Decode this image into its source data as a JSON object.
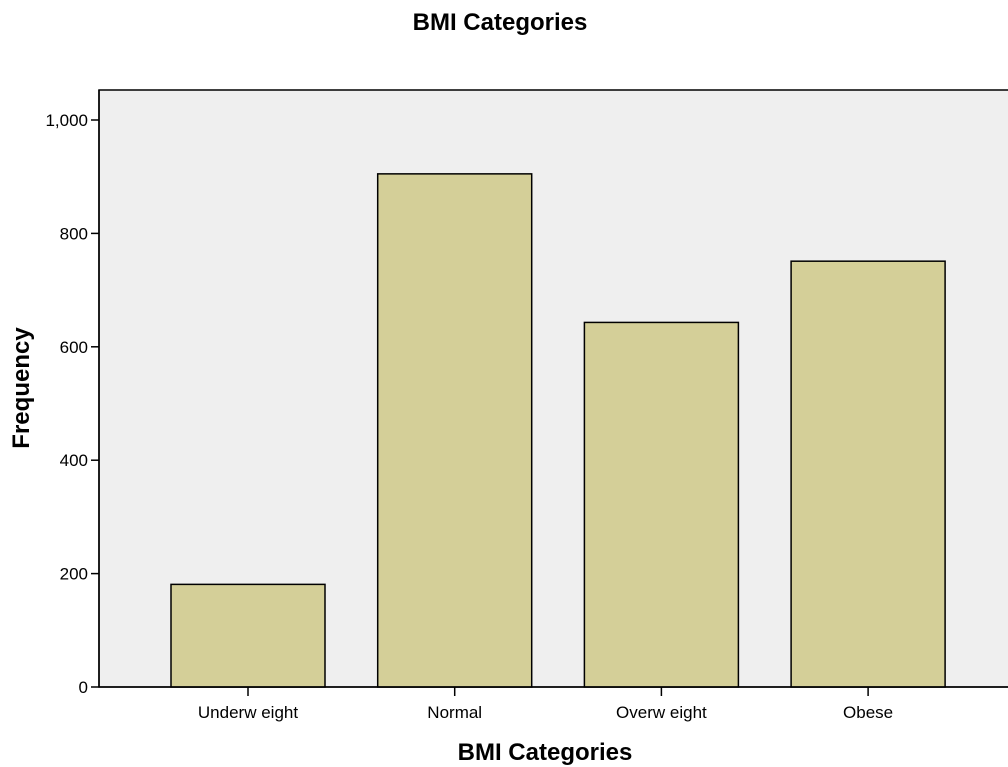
{
  "chart_data": {
    "type": "bar",
    "title": "BMI Categories",
    "xlabel": "BMI Categories",
    "ylabel": "Frequency",
    "categories": [
      "Underw eight",
      "Normal",
      "Overw eight",
      "Obese"
    ],
    "values": [
      181,
      905,
      643,
      751
    ],
    "ylim": [
      0,
      1000
    ],
    "yticks": [
      0,
      200,
      400,
      600,
      800,
      1000
    ],
    "ytick_labels": [
      "0",
      "200",
      "400",
      "600",
      "800",
      "1,000"
    ],
    "grid": false,
    "legend": "none",
    "colors": {
      "bar_fill": "#d4cf98",
      "bar_stroke": "#000000",
      "plot_background": "#efefef"
    }
  }
}
